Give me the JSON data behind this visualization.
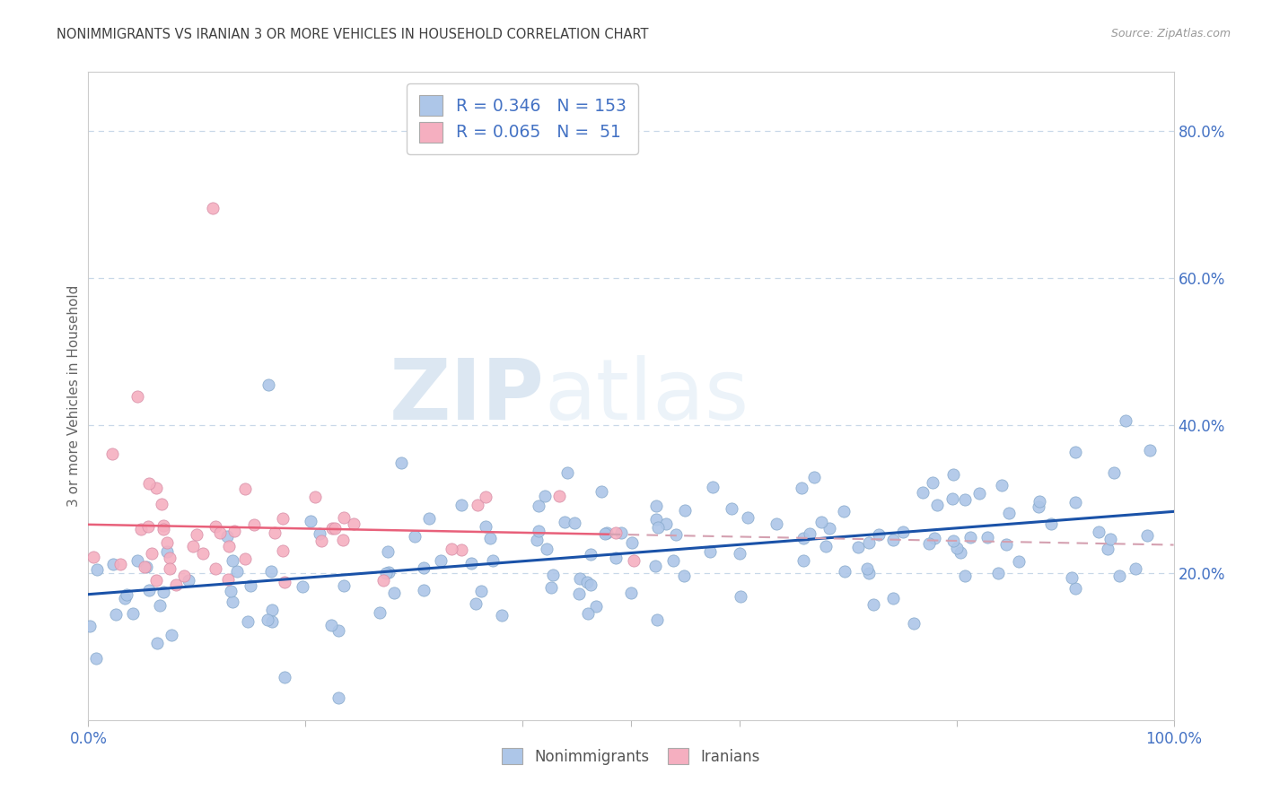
{
  "title": "NONIMMIGRANTS VS IRANIAN 3 OR MORE VEHICLES IN HOUSEHOLD CORRELATION CHART",
  "source_text": "Source: ZipAtlas.com",
  "ylabel": "3 or more Vehicles in Household",
  "watermark": "ZIPatlas",
  "blue_R": 0.346,
  "blue_N": 153,
  "pink_R": 0.065,
  "pink_N": 51,
  "blue_color": "#adc6e8",
  "pink_color": "#f5afc0",
  "blue_line_color": "#1a52a8",
  "pink_line_color": "#e8607a",
  "pink_line_dashed_color": "#d4a0b0",
  "right_ytick_labels": [
    "20.0%",
    "40.0%",
    "60.0%",
    "80.0%"
  ],
  "right_ytick_values": [
    0.2,
    0.4,
    0.6,
    0.8
  ],
  "grid_color": "#c8d8e8",
  "background_color": "#ffffff",
  "title_color": "#404040",
  "axis_tick_color": "#4472c4",
  "legend_label_color": "#4472c4",
  "source_color": "#999999",
  "ylabel_color": "#666666",
  "bottom_legend_color": "#555555",
  "ylim": [
    0.0,
    0.88
  ],
  "xlim": [
    0.0,
    1.0
  ]
}
